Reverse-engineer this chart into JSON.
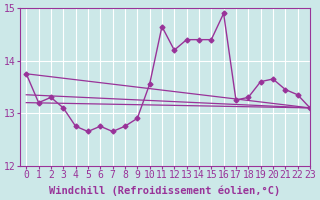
{
  "background_color": "#cce8e8",
  "grid_color": "#ffffff",
  "line_color": "#993399",
  "marker_color": "#993399",
  "xlabel": "Windchill (Refroidissement éolien,°C)",
  "xlabel_fontsize": 7.5,
  "tick_fontsize": 7,
  "xlim": [
    -0.5,
    23
  ],
  "ylim": [
    12,
    15
  ],
  "yticks": [
    12,
    13,
    14,
    15
  ],
  "xticks": [
    0,
    1,
    2,
    3,
    4,
    5,
    6,
    7,
    8,
    9,
    10,
    11,
    12,
    13,
    14,
    15,
    16,
    17,
    18,
    19,
    20,
    21,
    22,
    23
  ],
  "hours": [
    0,
    1,
    2,
    3,
    4,
    5,
    6,
    7,
    8,
    9,
    10,
    11,
    12,
    13,
    14,
    15,
    16,
    17,
    18,
    19,
    20,
    21,
    22,
    23
  ],
  "windchill": [
    13.75,
    13.2,
    13.3,
    13.1,
    12.75,
    12.65,
    12.75,
    12.65,
    12.75,
    12.9,
    13.55,
    14.65,
    14.2,
    14.4,
    14.4,
    14.4,
    14.9,
    13.25,
    13.3,
    13.6,
    13.65,
    13.45,
    13.35,
    13.1
  ],
  "line1_x": [
    0,
    23
  ],
  "line1_y": [
    13.35,
    13.1
  ],
  "line2_x": [
    0,
    23
  ],
  "line2_y": [
    13.2,
    13.1
  ],
  "line3_x": [
    0,
    23
  ],
  "line3_y": [
    13.75,
    13.1
  ]
}
